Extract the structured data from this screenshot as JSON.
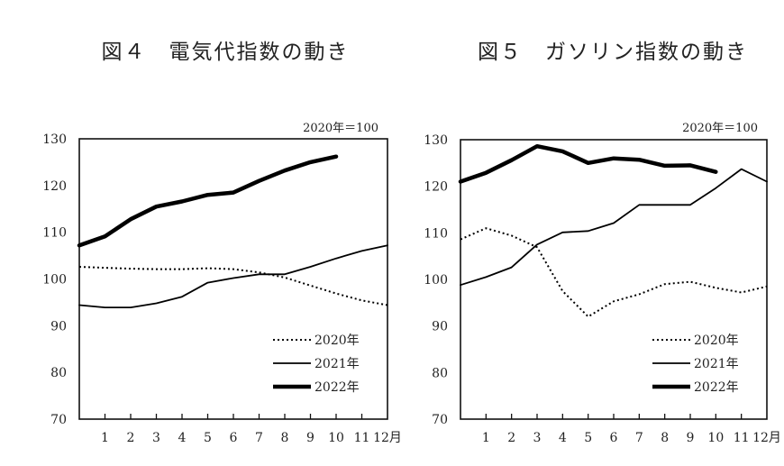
{
  "chart_data": [
    {
      "type": "line",
      "title": "図４　電気代指数の動き",
      "unit_note": "2020年＝100",
      "ylim": [
        70,
        130
      ],
      "yticks": [
        70,
        80,
        90,
        100,
        110,
        120,
        130
      ],
      "xlim": [
        0,
        12
      ],
      "xtick_labels": [
        "1",
        "2",
        "3",
        "4",
        "5",
        "6",
        "7",
        "8",
        "9",
        "10",
        "11",
        "12月"
      ],
      "grid": false,
      "legend": "bottom-right",
      "series": [
        {
          "name": "2020年",
          "style": "dotted",
          "x": [
            0,
            1,
            2,
            3,
            4,
            5,
            6,
            7,
            8,
            9,
            10,
            11,
            12
          ],
          "values": [
            102.6,
            102.4,
            102.2,
            102.1,
            102.1,
            102.3,
            102.1,
            101.4,
            100.3,
            98.6,
            96.9,
            95.4,
            94.4
          ]
        },
        {
          "name": "2021年",
          "style": "solid",
          "x": [
            0,
            1,
            2,
            3,
            4,
            5,
            6,
            7,
            8,
            9,
            10,
            11,
            12
          ],
          "values": [
            94.4,
            93.9,
            93.9,
            94.8,
            96.2,
            99.2,
            100.2,
            101.0,
            101.0,
            102.6,
            104.4,
            106.0,
            107.2
          ]
        },
        {
          "name": "2022年",
          "style": "bold",
          "x": [
            0,
            1,
            2,
            3,
            4,
            5,
            6,
            7,
            8,
            9,
            10
          ],
          "values": [
            107.2,
            109.1,
            112.8,
            115.5,
            116.6,
            118.0,
            118.5,
            121.0,
            123.2,
            125.0,
            126.2
          ]
        }
      ]
    },
    {
      "type": "line",
      "title": "図５　ガソリン指数の動き",
      "unit_note": "2020年＝100",
      "ylim": [
        70,
        130
      ],
      "yticks": [
        70,
        80,
        90,
        100,
        110,
        120,
        130
      ],
      "xlim": [
        0,
        12
      ],
      "xtick_labels": [
        "1",
        "2",
        "3",
        "4",
        "5",
        "6",
        "7",
        "8",
        "9",
        "10",
        "11",
        "12月"
      ],
      "grid": false,
      "legend": "bottom-right",
      "series": [
        {
          "name": "2020年",
          "style": "dotted",
          "x": [
            0,
            1,
            2,
            3,
            4,
            5,
            6,
            7,
            8,
            9,
            10,
            11,
            12
          ],
          "values": [
            108.6,
            111.0,
            109.4,
            106.9,
            97.5,
            92.0,
            95.3,
            96.8,
            99.0,
            99.5,
            98.2,
            97.2,
            98.5
          ]
        },
        {
          "name": "2021年",
          "style": "solid",
          "x": [
            0,
            1,
            2,
            3,
            4,
            5,
            6,
            7,
            8,
            9,
            10,
            11,
            12
          ],
          "values": [
            98.8,
            100.5,
            102.6,
            107.5,
            110.1,
            110.4,
            112.1,
            116.0,
            116.0,
            116.0,
            119.6,
            123.7,
            121.0
          ]
        },
        {
          "name": "2022年",
          "style": "bold",
          "x": [
            0,
            1,
            2,
            3,
            4,
            5,
            6,
            7,
            8,
            9,
            10
          ],
          "values": [
            121.0,
            122.9,
            125.6,
            128.6,
            127.5,
            125.0,
            126.0,
            125.7,
            124.4,
            124.5,
            123.1
          ]
        }
      ]
    }
  ]
}
